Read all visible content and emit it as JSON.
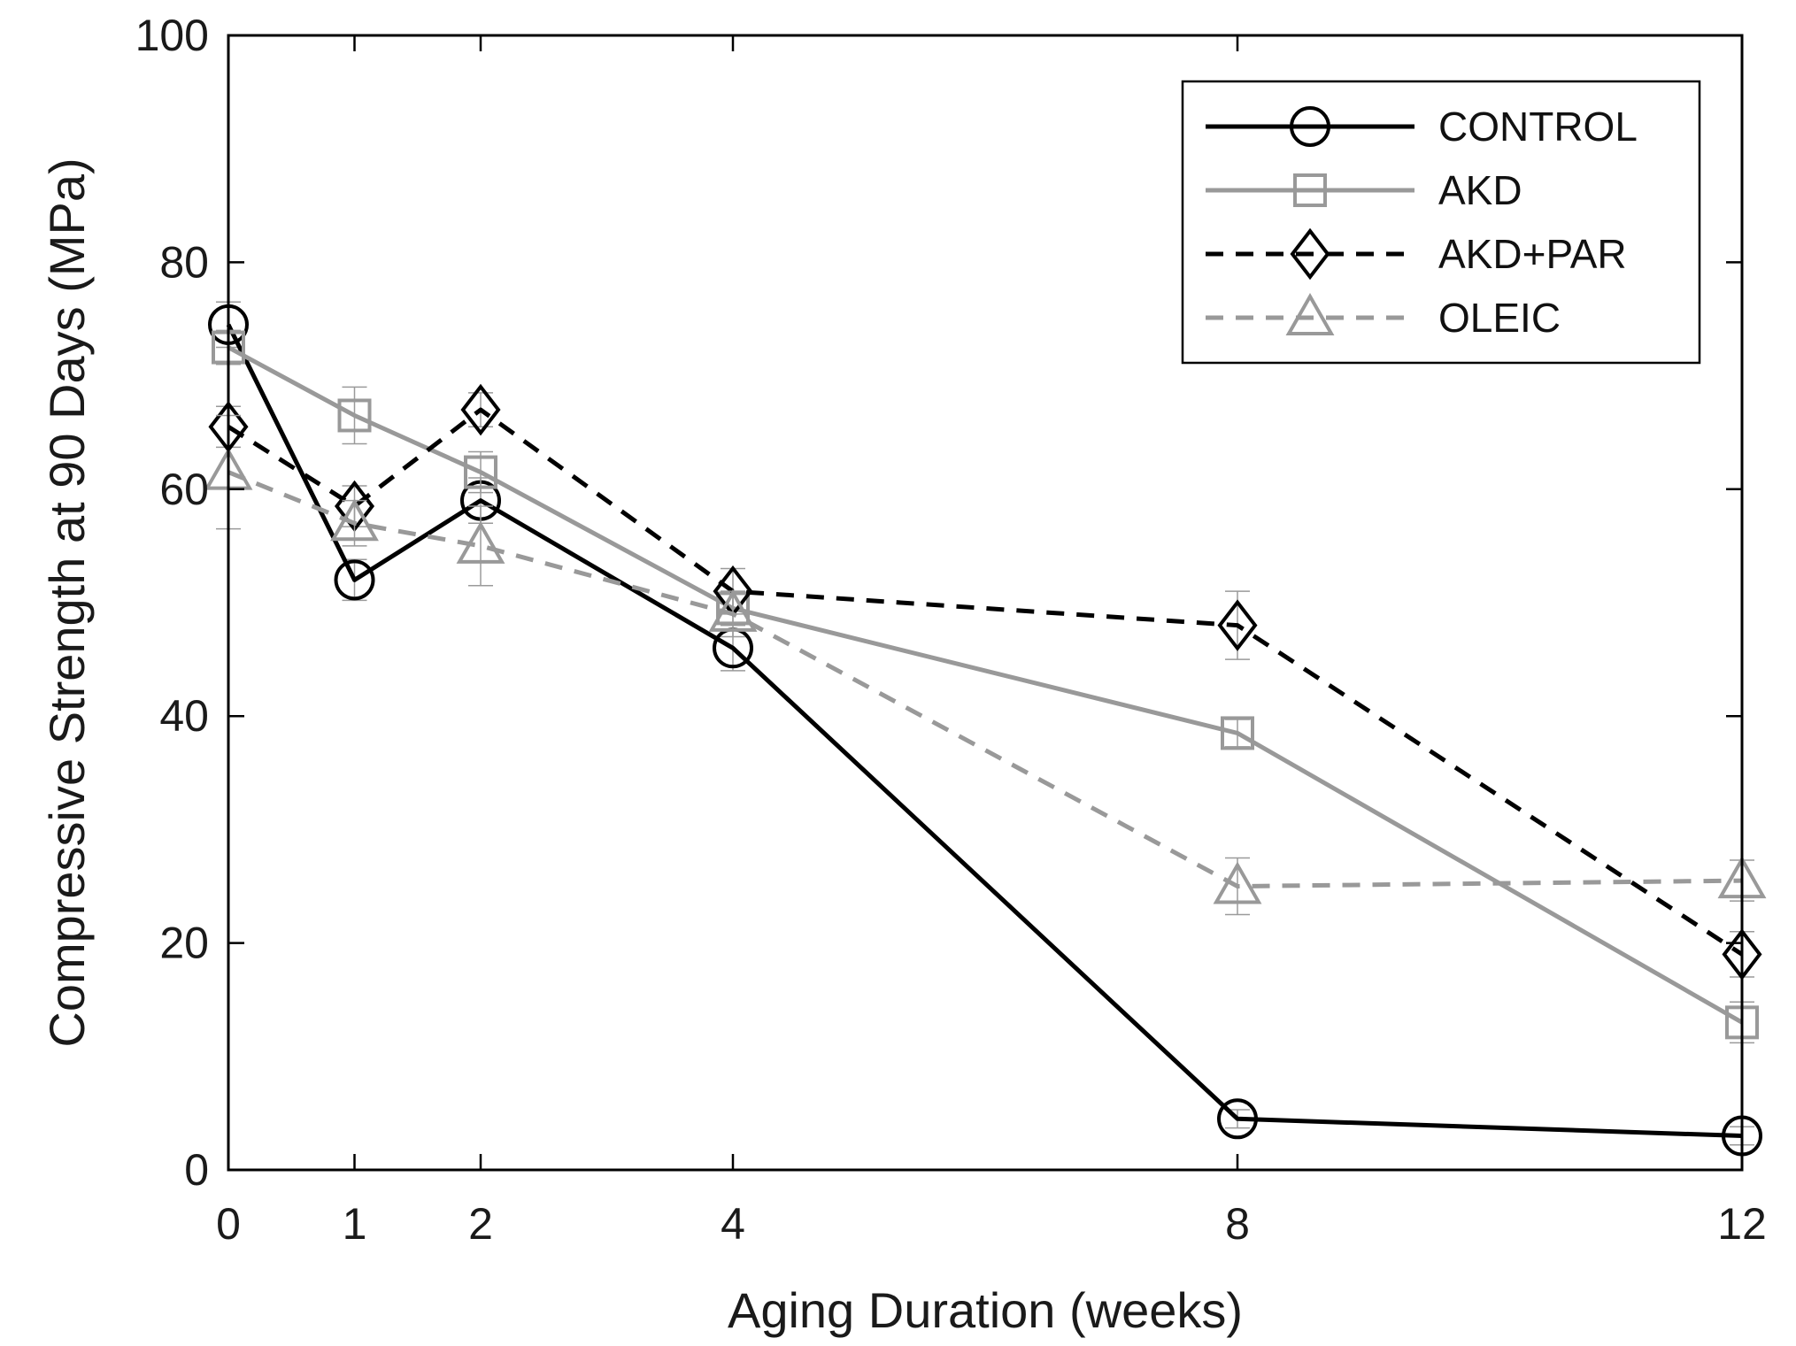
{
  "chart_data": {
    "type": "line",
    "title": "",
    "xlabel": "Aging Duration (weeks)",
    "ylabel": "Compressive Strength at 90 Days (MPa)",
    "xlim": [
      0,
      12
    ],
    "ylim": [
      0,
      100
    ],
    "xticks": [
      0,
      1,
      2,
      4,
      8,
      12
    ],
    "yticks": [
      0,
      20,
      40,
      60,
      80,
      100
    ],
    "xtick_labels": [
      "0",
      "1",
      "2",
      "4",
      "8",
      "12"
    ],
    "ytick_labels": [
      "0",
      "20",
      "40",
      "60",
      "80",
      "100"
    ],
    "grid": false,
    "legend_position": "top-right",
    "x": [
      0,
      1,
      2,
      4,
      8,
      12
    ],
    "series": [
      {
        "name": "CONTROL",
        "values": [
          74.5,
          52.0,
          59.0,
          46.0,
          4.5,
          3.0
        ],
        "errors": [
          2.0,
          1.8,
          2.0,
          2.0,
          0.8,
          0.8
        ],
        "color": "#000000",
        "dash": "solid",
        "marker": "circle"
      },
      {
        "name": "AKD",
        "values": [
          72.5,
          66.5,
          61.5,
          49.5,
          38.5,
          13.0
        ],
        "errors": [
          1.5,
          2.5,
          1.8,
          1.5,
          1.2,
          1.8
        ],
        "color": "#999999",
        "dash": "solid",
        "marker": "square"
      },
      {
        "name": "AKD+PAR",
        "values": [
          65.5,
          58.5,
          67.0,
          51.0,
          48.0,
          19.0
        ],
        "errors": [
          1.8,
          1.8,
          1.5,
          2.0,
          3.0,
          2.0
        ],
        "color": "#000000",
        "dash": "dashed",
        "marker": "diamond"
      },
      {
        "name": "OLEIC",
        "values": [
          61.5,
          57.0,
          55.0,
          49.0,
          25.0,
          25.5
        ],
        "errors": [
          5.0,
          2.0,
          3.5,
          2.0,
          2.5,
          1.8
        ],
        "color": "#999999",
        "dash": "dashed",
        "marker": "triangle"
      }
    ]
  }
}
